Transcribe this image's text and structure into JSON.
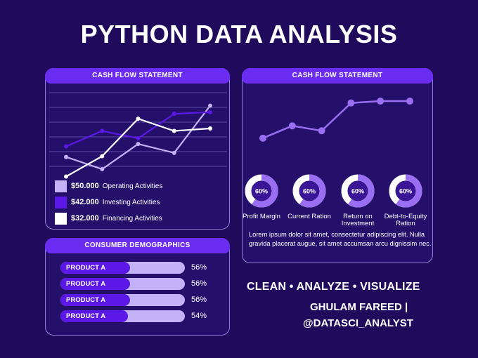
{
  "title": "PYTHON DATA ANALYSIS",
  "colors": {
    "background": "#1f0a5c",
    "header": "#6a2cf0",
    "operating": "#c4b2f7",
    "investing": "#5b18e6",
    "financing": "#ffffff",
    "trend": "#9a6ef2"
  },
  "cash_flow_left": {
    "header": "CASH FLOW STATEMENT",
    "legend": [
      {
        "value": "$50.000",
        "label": "Operating Activities",
        "color": "#c4b2f7"
      },
      {
        "value": "$42.000",
        "label": "Investing Activities",
        "color": "#5b18e6"
      },
      {
        "value": "$32.000",
        "label": "Financing Activities",
        "color": "#ffffff"
      }
    ],
    "chart_data": {
      "type": "line",
      "x": [
        1,
        2,
        3,
        4,
        5
      ],
      "ylim": [
        0,
        10
      ],
      "grid": true,
      "series": [
        {
          "name": "Operating Activities",
          "color": "#c4b2f7",
          "values": [
            2.1,
            0.6,
            3.7,
            2.6,
            8.4
          ]
        },
        {
          "name": "Investing Activities",
          "color": "#5b18e6",
          "values": [
            3.4,
            5.3,
            4.4,
            7.4,
            7.6
          ]
        },
        {
          "name": "Financing Activities",
          "color": "#ffffff",
          "values": [
            -0.3,
            2.2,
            6.8,
            5.3,
            5.6
          ]
        }
      ]
    }
  },
  "cash_flow_right": {
    "header": "CASH FLOW STATEMENT",
    "chart_data": {
      "type": "line",
      "x": [
        1,
        2,
        3,
        4,
        5,
        6
      ],
      "ylim": [
        0,
        10
      ],
      "grid": false,
      "series": [
        {
          "color": "#9a6ef2",
          "values": [
            3.2,
            5.2,
            4.4,
            8.9,
            9.2,
            9.2
          ]
        }
      ]
    },
    "ratios": [
      {
        "percent": "60%",
        "label": "Profit Margin",
        "fraction": 0.6
      },
      {
        "percent": "60%",
        "label": "Current Ration",
        "fraction": 0.6
      },
      {
        "percent": "60%",
        "label": "Return on Investment",
        "fraction": 0.6
      },
      {
        "percent": "60%",
        "label": "Debt-to-Equity Ration",
        "fraction": 0.6
      }
    ],
    "description": "Lorem ipsum dolor sit amet, consectetur adipiscing elit. Nulla gravida placerat augue, sit amet accumsan arcu dignissim nec."
  },
  "demographics": {
    "header": "CONSUMER DEMOGRAPHICS",
    "items": [
      {
        "label": "PRODUCT A",
        "percent": "56%",
        "value": 56
      },
      {
        "label": "PRODUCT A",
        "percent": "56%",
        "value": 56
      },
      {
        "label": "PRODUCT A",
        "percent": "56%",
        "value": 56
      },
      {
        "label": "PRODUCT A",
        "percent": "54%",
        "value": 54
      }
    ]
  },
  "tagline": "CLEAN • ANALYZE • VISUALIZE",
  "author_line1": "GHULAM FAREED |",
  "author_line2": "@DATASCI_ANALYST"
}
